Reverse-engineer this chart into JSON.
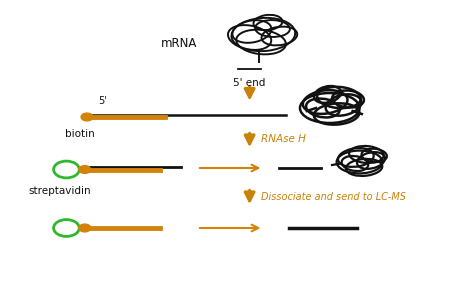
{
  "bg_color": "#ffffff",
  "arrow_color": "#c8820a",
  "orange_line_color": "#d4830a",
  "black_line_color": "#111111",
  "green_circle_color": "#2db82d",
  "biotin_ball_color": "#d4830a",
  "label_mrna": "mRNA",
  "label_5end": "5' end",
  "label_5prime": "5'",
  "label_biotin": "biotin",
  "label_streptavidin": "streptavidin",
  "label_rnase": "RNAse H",
  "label_dissociate": "Dissociate and send to LC-MS",
  "figsize": [
    4.58,
    3.0
  ],
  "dpi": 100
}
